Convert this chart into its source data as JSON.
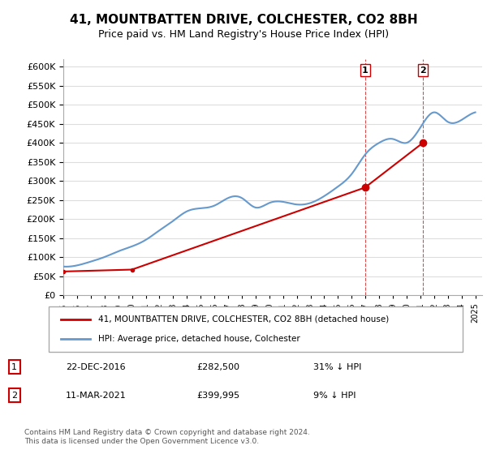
{
  "title": "41, MOUNTBATTEN DRIVE, COLCHESTER, CO2 8BH",
  "subtitle": "Price paid vs. HM Land Registry's House Price Index (HPI)",
  "ylim": [
    0,
    620000
  ],
  "yticks": [
    0,
    50000,
    100000,
    150000,
    200000,
    250000,
    300000,
    350000,
    400000,
    450000,
    500000,
    550000,
    600000
  ],
  "legend1": "41, MOUNTBATTEN DRIVE, COLCHESTER, CO2 8BH (detached house)",
  "legend2": "HPI: Average price, detached house, Colchester",
  "event1_label": "1",
  "event1_date": "22-DEC-2016",
  "event1_price": "£282,500",
  "event1_hpi": "31% ↓ HPI",
  "event2_label": "2",
  "event2_date": "11-MAR-2021",
  "event2_price": "£399,995",
  "event2_hpi": "9% ↓ HPI",
  "footer": "Contains HM Land Registry data © Crown copyright and database right 2024.\nThis data is licensed under the Open Government Licence v3.0.",
  "hpi_color": "#6699cc",
  "price_color": "#cc0000",
  "event_line_color": "#cc0000",
  "background_color": "#ffffff",
  "grid_color": "#dddddd",
  "sale1_x": 2016.97,
  "sale1_y": 282500,
  "sale2_x": 2021.19,
  "sale2_y": 399995,
  "hpi_years": [
    1995,
    1996,
    1997,
    1998,
    1999,
    2000,
    2001,
    2002,
    2003,
    2004,
    2005,
    2006,
    2007,
    2008,
    2009,
    2010,
    2011,
    2012,
    2013,
    2014,
    2015,
    2016,
    2017,
    2018,
    2019,
    2020,
    2021,
    2022,
    2023,
    2024,
    2025
  ],
  "hpi_values": [
    75000,
    78000,
    88000,
    100000,
    115000,
    128000,
    145000,
    170000,
    195000,
    220000,
    228000,
    235000,
    255000,
    255000,
    230000,
    242000,
    245000,
    238000,
    242000,
    260000,
    285000,
    318000,
    370000,
    400000,
    410000,
    400000,
    440000,
    480000,
    455000,
    460000,
    480000
  ],
  "sold_years": [
    1995,
    2000,
    2016.97,
    2021.19
  ],
  "sold_values": [
    62000,
    67000,
    282500,
    399995
  ],
  "xmin": 1995,
  "xmax": 2025.5
}
